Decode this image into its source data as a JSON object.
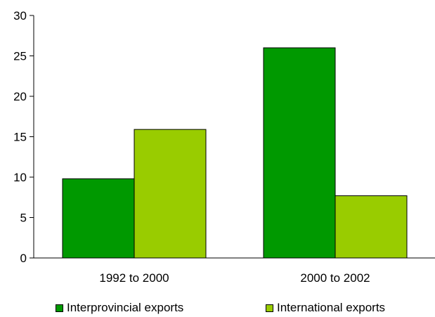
{
  "chart_data": {
    "type": "bar",
    "categories": [
      "1992 to 2000",
      "2000 to 2002"
    ],
    "series": [
      {
        "name": "Interprovincial exports",
        "values": [
          9.8,
          26.0
        ],
        "color": "#009900"
      },
      {
        "name": "International exports",
        "values": [
          15.9,
          7.7
        ],
        "color": "#99CC00"
      }
    ],
    "ylim": [
      0,
      30
    ],
    "yticks": [
      "0",
      "5",
      "10",
      "15",
      "20",
      "25",
      "30"
    ],
    "grid": false,
    "legend_position": "bottom"
  }
}
